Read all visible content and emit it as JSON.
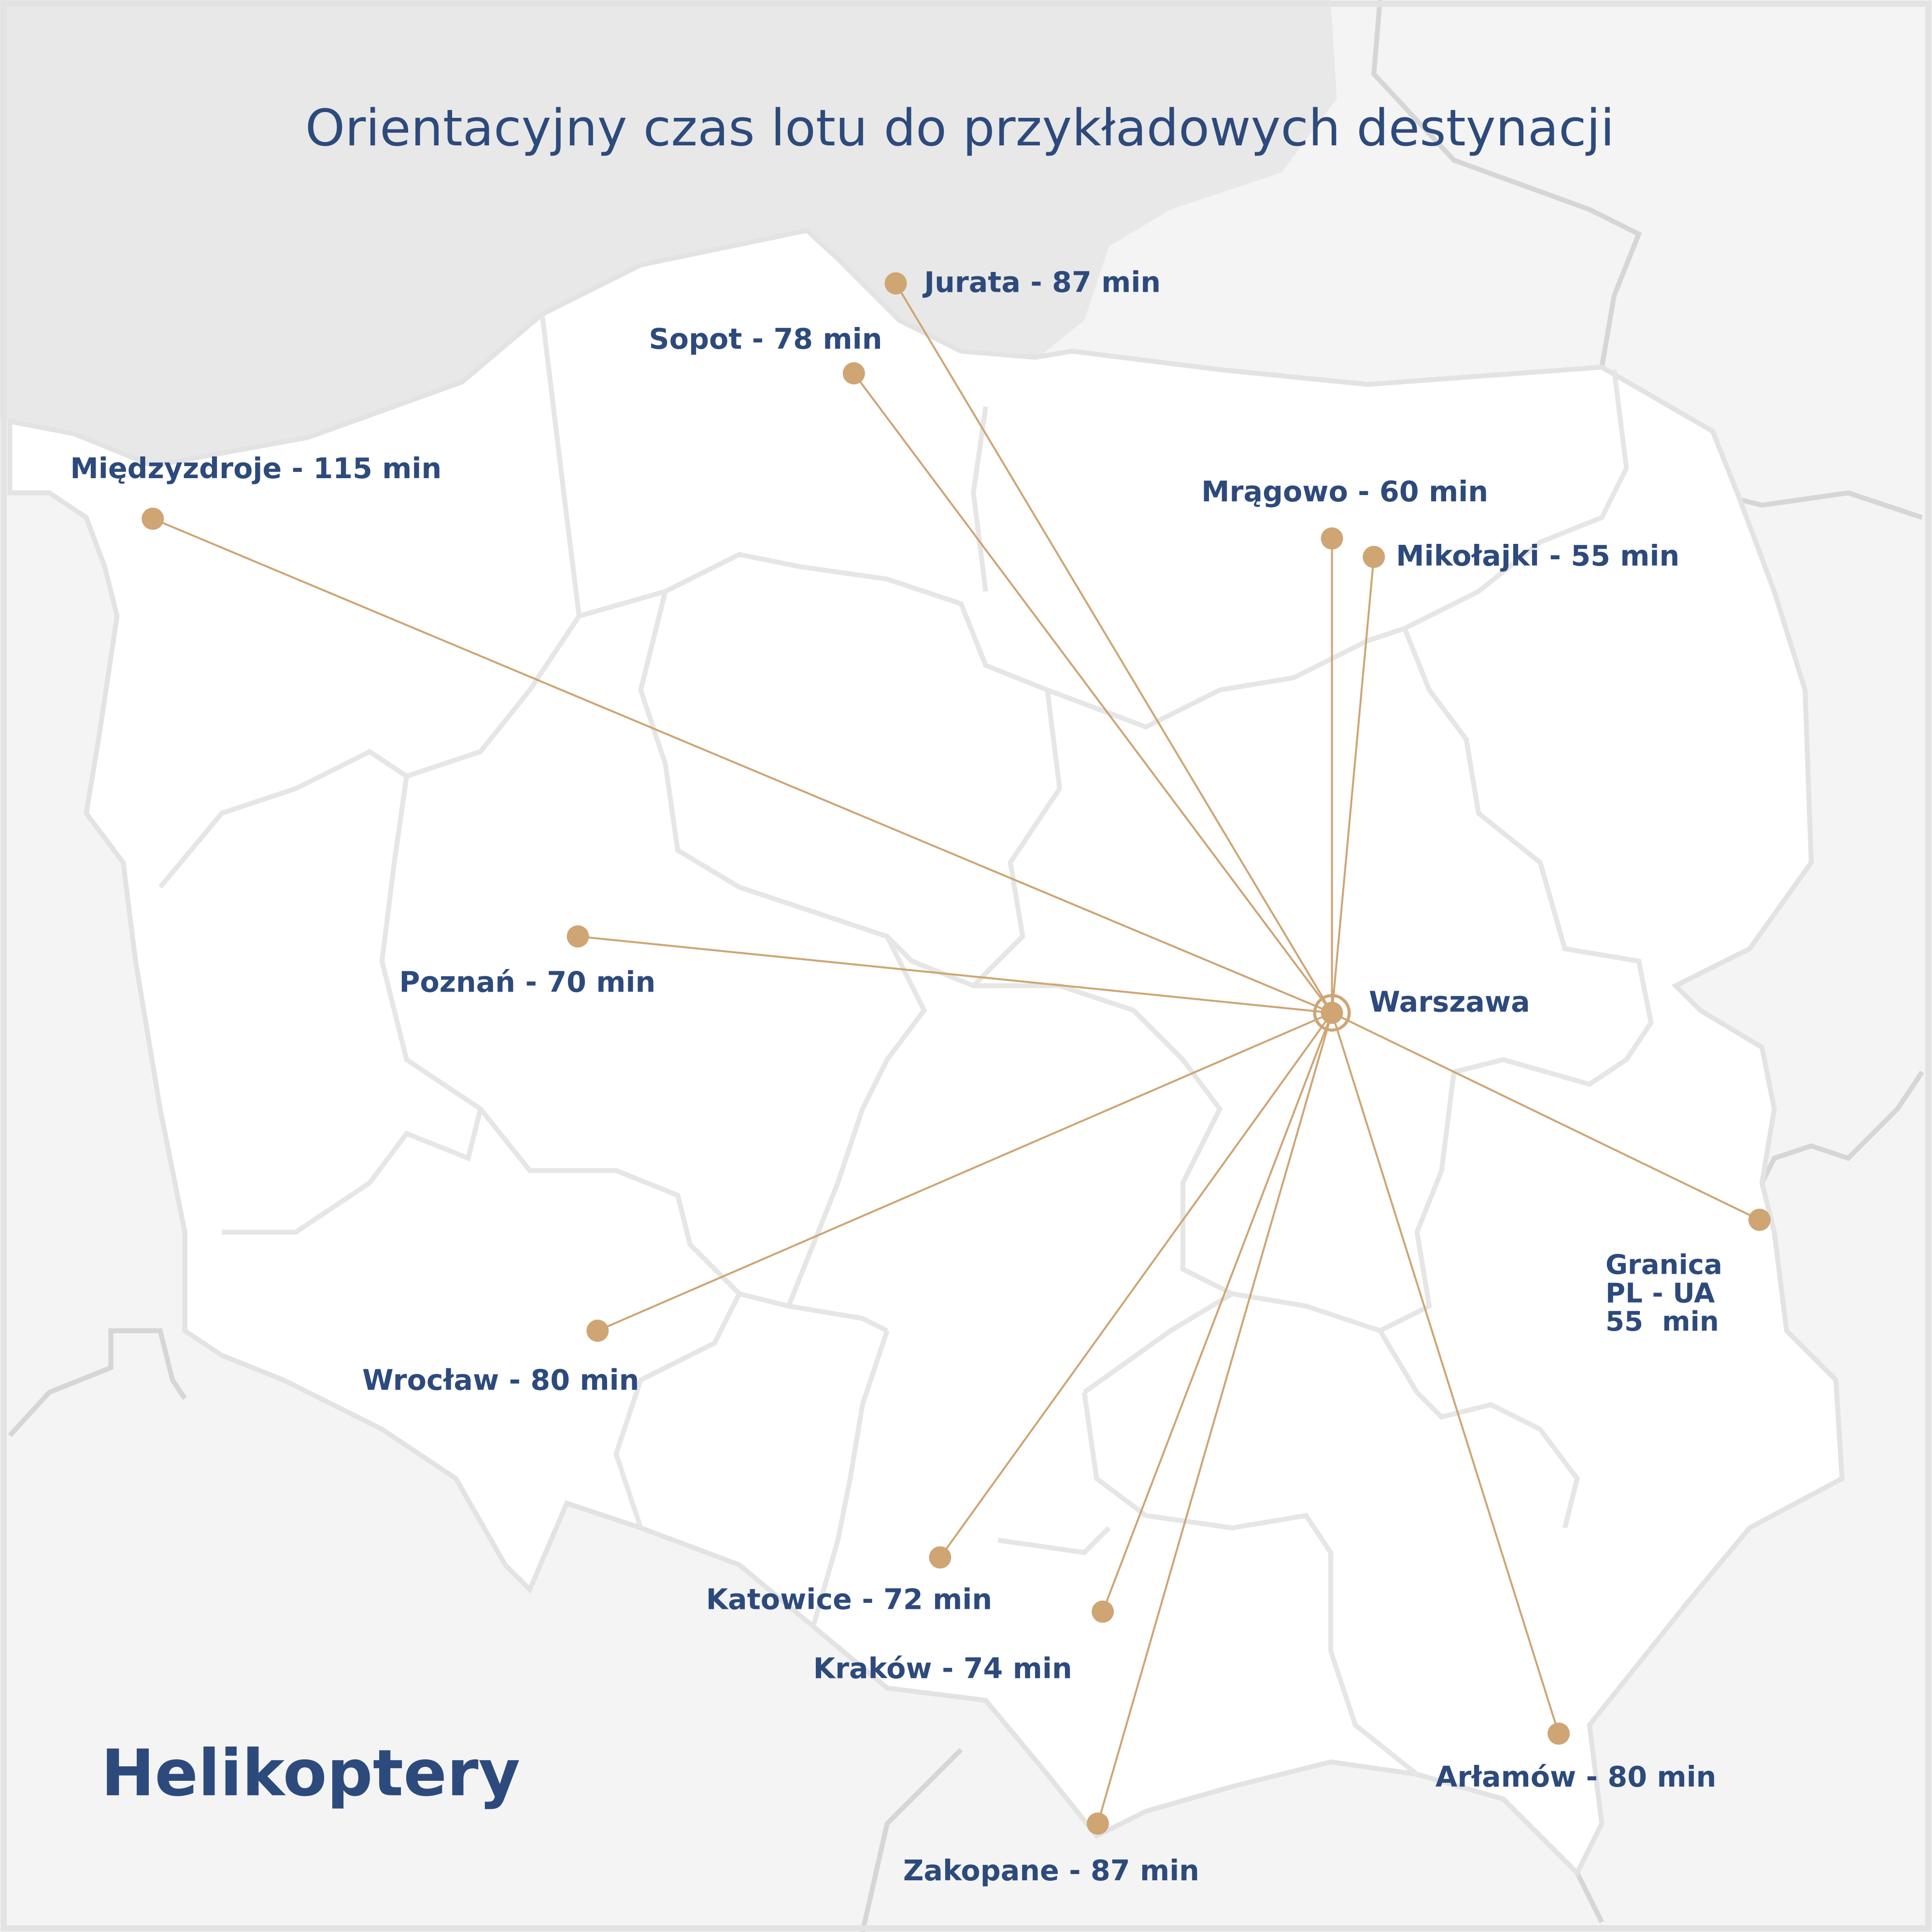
{
  "title": "Orientacyjny czas lotu do przykładowych destynacji",
  "footer_title": "Helikoptery",
  "colors": {
    "accent": "#cfa574",
    "text": "#2d4a7c",
    "land": "#ffffff",
    "neighbors": "#f4f4f4",
    "sea": "#e8e8e8",
    "borders": "#e3e3e3"
  },
  "hub": {
    "name": "Warszawa",
    "icon": "target-circle-icon"
  },
  "destinations": [
    {
      "label": "Jurata - 87 min"
    },
    {
      "label": "Sopot - 78 min"
    },
    {
      "label": "Międzyzdroje - 115 min"
    },
    {
      "label": "Mrągowo - 60 min"
    },
    {
      "label": "Mikołajki - 55 min"
    },
    {
      "label": "Poznań - 70 min"
    },
    {
      "label": "Wrocław - 80 min"
    },
    {
      "label": "Katowice - 72 min"
    },
    {
      "label": "Kraków - 74 min"
    },
    {
      "label": "Zakopane - 87 min"
    },
    {
      "label": "Arłamów - 80 min"
    },
    {
      "label_lines": [
        "Granica",
        "PL - UA",
        "55  min"
      ]
    }
  ]
}
